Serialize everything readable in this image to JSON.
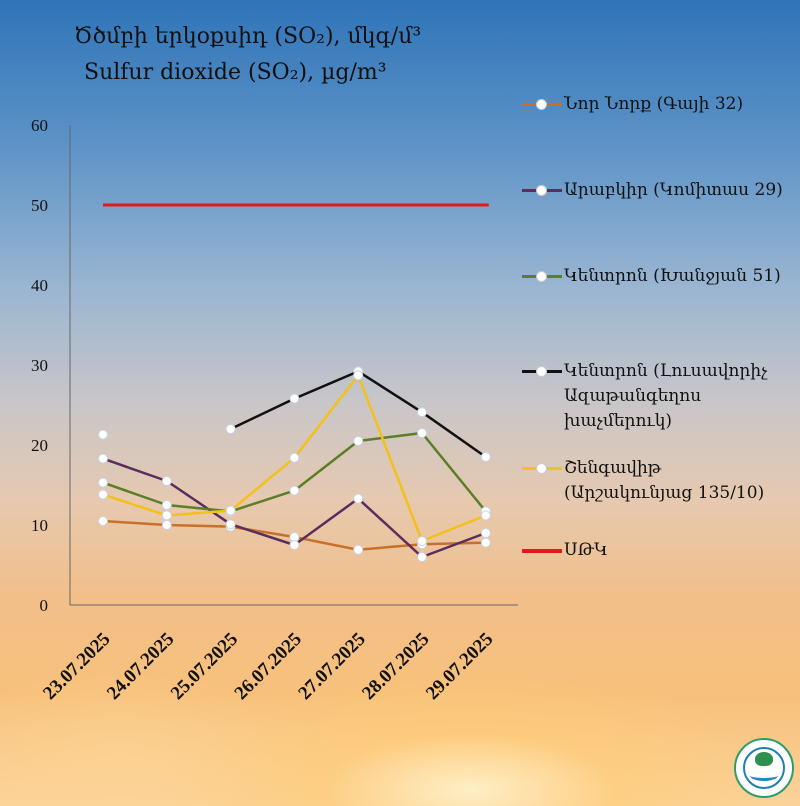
{
  "title_line1": "Ծծմբի երկօքսիդ (SO₂), մկգ/մ³",
  "title_line2": "Sulfur dioxide (SO₂), µg/m³",
  "legend": [
    {
      "label": "Նոր Նորք (Գայի 32)",
      "color": "#c8702a"
    },
    {
      "label": "Արաբկիր (Կոմիտաս 29)",
      "color": "#5b2d5e"
    },
    {
      "label": "Կենտրոն (Խանջյան 51)",
      "color": "#5b7f26"
    },
    {
      "label": "Կենտրոն (Լուսավորիչ Ազաթանգեղոս խաչմերուկ)",
      "color": "#111111"
    },
    {
      "label": "Շենգավիթ (Արշակունյաց 135/10)",
      "color": "#f4c01a"
    },
    {
      "label": "ՍԹԿ",
      "color": "#e01a1a"
    }
  ],
  "chart_data": {
    "type": "line",
    "title": "Ծծմբի երկօքսիդ (SO₂), մկգ/մ³ / Sulfur dioxide (SO₂), µg/m³",
    "xlabel": "",
    "ylabel": "",
    "categories": [
      "23.07.2025",
      "24.07.2025",
      "25.07.2025",
      "26.07.2025",
      "27.07.2025",
      "28.07.2025",
      "29.07.2025"
    ],
    "ylim": [
      0,
      60
    ],
    "yticks": [
      0,
      10,
      20,
      30,
      40,
      50,
      60
    ],
    "series": [
      {
        "name": "Նոր Նորք (Գայի 32)",
        "color": "#c8702a",
        "values": [
          10.5,
          10,
          9.8,
          8.5,
          6.9,
          7.6,
          7.8
        ]
      },
      {
        "name": "Արաբկիր (Կոմիտաս 29)",
        "color": "#5b2d5e",
        "values": [
          18.3,
          15.5,
          10.1,
          7.5,
          13.3,
          6,
          9
        ]
      },
      {
        "name": "Կենտրոն (Խանջյան 51)",
        "color": "#5b7f26",
        "values": [
          15.3,
          12.5,
          11.7,
          14.3,
          20.5,
          21.5,
          11.7
        ]
      },
      {
        "name": "Կենտրոն (Լուսավորիչ Ազաթանգեղոս խաչմերուկ)",
        "color": "#111111",
        "values": [
          21.3,
          null,
          22,
          25.8,
          29.2,
          24.1,
          18.5
        ]
      },
      {
        "name": "Շենգավիթ (Արշակունյաց 135/10)",
        "color": "#f4c01a",
        "values": [
          13.8,
          11.2,
          11.8,
          18.4,
          28.7,
          8,
          11.2
        ]
      }
    ],
    "reference_line": {
      "name": "ՍԹԿ",
      "value": 50,
      "color": "#e01a1a"
    },
    "grid": false,
    "legend_position": "right"
  }
}
